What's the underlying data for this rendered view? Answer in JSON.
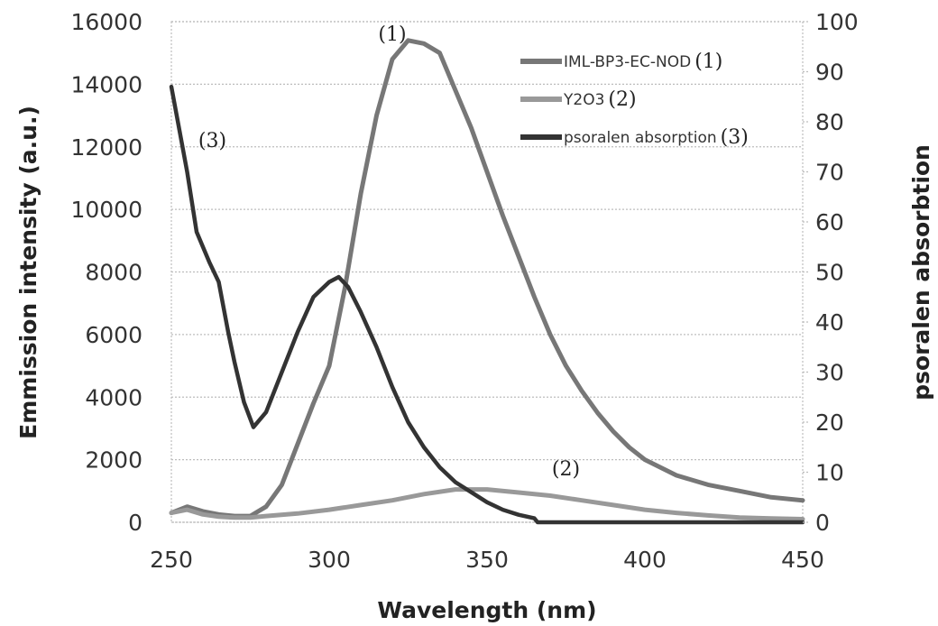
{
  "chart_data": {
    "type": "line",
    "xlabel": "Wavelength (nm)",
    "ylabel": "Emmission intensity (a.u.)",
    "y2label": "psoralen absorbtion",
    "xlim": [
      250,
      450
    ],
    "ylim": [
      0,
      16000
    ],
    "y2lim": [
      0,
      100
    ],
    "xticks": [
      "250",
      "300",
      "350",
      "400",
      "450"
    ],
    "yticks": [
      "0",
      "2000",
      "4000",
      "6000",
      "8000",
      "10000",
      "12000",
      "14000",
      "16000"
    ],
    "y2ticks": [
      "0",
      "10",
      "20",
      "30",
      "40",
      "50",
      "60",
      "70",
      "80",
      "90",
      "100"
    ],
    "grid": true,
    "legend_position": "top-right",
    "series": [
      {
        "name": "IML-BP3-EC-NOD",
        "label": "(1)",
        "axis": "left",
        "color": "#777777",
        "x": [
          250,
          255,
          260,
          265,
          270,
          275,
          280,
          285,
          290,
          295,
          300,
          305,
          310,
          315,
          320,
          325,
          330,
          335,
          340,
          345,
          350,
          355,
          360,
          365,
          370,
          375,
          380,
          385,
          390,
          395,
          400,
          410,
          420,
          430,
          440,
          450
        ],
        "y": [
          300,
          500,
          350,
          250,
          200,
          200,
          500,
          1200,
          2500,
          3800,
          5000,
          7500,
          10500,
          13000,
          14800,
          15400,
          15300,
          15000,
          13800,
          12600,
          11200,
          9800,
          8500,
          7200,
          6000,
          5000,
          4200,
          3500,
          2900,
          2400,
          2000,
          1500,
          1200,
          1000,
          800,
          700
        ]
      },
      {
        "name": "Y2O3",
        "label": "(2)",
        "axis": "left",
        "color": "#999999",
        "x": [
          250,
          255,
          260,
          265,
          270,
          275,
          280,
          290,
          300,
          310,
          320,
          330,
          340,
          350,
          360,
          370,
          380,
          390,
          400,
          410,
          420,
          430,
          440,
          450
        ],
        "y": [
          300,
          400,
          250,
          180,
          150,
          150,
          200,
          280,
          400,
          550,
          700,
          900,
          1050,
          1050,
          950,
          850,
          700,
          550,
          400,
          300,
          220,
          150,
          120,
          100
        ]
      },
      {
        "name": "psoralen absorption",
        "label": "(3)",
        "axis": "right",
        "color": "#333333",
        "x": [
          250,
          255,
          258,
          262,
          265,
          268,
          270,
          273,
          276,
          280,
          285,
          290,
          295,
          300,
          303,
          306,
          310,
          315,
          320,
          325,
          330,
          335,
          340,
          345,
          350,
          355,
          360,
          365,
          366,
          370,
          380,
          400,
          450
        ],
        "y": [
          87,
          70,
          58,
          52,
          48,
          38,
          32,
          24,
          19,
          22,
          30,
          38,
          45,
          48,
          49,
          47,
          42,
          35,
          27,
          20,
          15,
          11,
          8,
          6,
          4,
          2.5,
          1.5,
          0.8,
          0,
          0,
          0,
          0,
          0
        ]
      }
    ],
    "annotations": [
      {
        "text": "(1)",
        "x": 320,
        "y": 15400,
        "axis": "left"
      },
      {
        "text": "(3)",
        "x": 263,
        "y": 12000,
        "axis": "left"
      },
      {
        "text": "(2)",
        "x": 375,
        "y": 1500,
        "axis": "left"
      }
    ]
  }
}
